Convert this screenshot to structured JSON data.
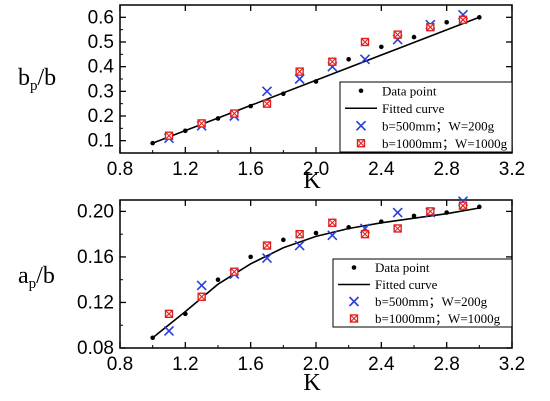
{
  "chart_data": [
    {
      "type": "scatter",
      "xlabel": "K",
      "ylabel": "bp/b",
      "xlim": [
        0.8,
        3.2
      ],
      "ylim": [
        0.05,
        0.65
      ],
      "x_ticks": [
        "0.8",
        "1.2",
        "1.6",
        "2.0",
        "2.4",
        "2.8",
        "3.2"
      ],
      "y_ticks": [
        "0.1",
        "0.2",
        "0.3",
        "0.4",
        "0.5",
        "0.6"
      ],
      "y_tick_values": [
        0.1,
        0.2,
        0.3,
        0.4,
        0.5,
        0.6
      ],
      "legend_position": "bottom-right",
      "series": [
        {
          "name": "Data point",
          "marker": "dot",
          "color": "#000000",
          "x": [
            1.0,
            1.2,
            1.4,
            1.6,
            1.8,
            2.0,
            2.2,
            2.4,
            2.6,
            2.8,
            3.0
          ],
          "y": [
            0.09,
            0.14,
            0.19,
            0.24,
            0.29,
            0.34,
            0.43,
            0.48,
            0.52,
            0.58,
            0.6
          ]
        },
        {
          "name": "Fitted curve",
          "marker": "line",
          "color": "#000000",
          "x": [
            1.0,
            1.5,
            2.0,
            2.5,
            3.0
          ],
          "y": [
            0.09,
            0.217,
            0.345,
            0.473,
            0.6
          ]
        },
        {
          "name": "b=500mm；W=200g",
          "marker": "x",
          "color": "#2b3fd4",
          "x": [
            1.1,
            1.3,
            1.5,
            1.7,
            1.9,
            2.1,
            2.3,
            2.5,
            2.7,
            2.9
          ],
          "y": [
            0.11,
            0.16,
            0.2,
            0.3,
            0.35,
            0.4,
            0.43,
            0.51,
            0.57,
            0.61
          ]
        },
        {
          "name": "b=1000mm；W=1000g",
          "marker": "square",
          "color": "#e02020",
          "x": [
            1.1,
            1.3,
            1.5,
            1.7,
            1.9,
            2.1,
            2.3,
            2.5,
            2.7,
            2.9
          ],
          "y": [
            0.12,
            0.17,
            0.21,
            0.25,
            0.38,
            0.42,
            0.5,
            0.53,
            0.56,
            0.59
          ]
        }
      ]
    },
    {
      "type": "scatter",
      "xlabel": "K",
      "ylabel": "ap/b",
      "xlim": [
        0.8,
        3.2
      ],
      "ylim": [
        0.08,
        0.21
      ],
      "x_ticks": [
        "0.8",
        "1.2",
        "1.6",
        "2.0",
        "2.4",
        "2.8",
        "3.2"
      ],
      "y_ticks": [
        "0.08",
        "0.12",
        "0.16",
        "0.20"
      ],
      "y_tick_values": [
        0.08,
        0.12,
        0.16,
        0.2
      ],
      "legend_position": "bottom-right",
      "series": [
        {
          "name": "Data point",
          "marker": "dot",
          "color": "#000000",
          "x": [
            1.0,
            1.2,
            1.4,
            1.6,
            1.8,
            2.0,
            2.2,
            2.4,
            2.6,
            2.8,
            3.0
          ],
          "y": [
            0.089,
            0.11,
            0.14,
            0.16,
            0.175,
            0.181,
            0.186,
            0.191,
            0.196,
            0.199,
            0.204
          ]
        },
        {
          "name": "Fitted curve",
          "marker": "line",
          "color": "#000000",
          "x": [
            1.0,
            1.2,
            1.4,
            1.6,
            1.8,
            2.0,
            2.2,
            2.4,
            2.6,
            2.8,
            3.0
          ],
          "y": [
            0.089,
            0.112,
            0.136,
            0.154,
            0.168,
            0.178,
            0.185,
            0.19,
            0.194,
            0.198,
            0.203
          ]
        },
        {
          "name": "b=500mm；W=200g",
          "marker": "x",
          "color": "#2b3fd4",
          "x": [
            1.1,
            1.3,
            1.5,
            1.7,
            1.9,
            2.1,
            2.3,
            2.5,
            2.7,
            2.9
          ],
          "y": [
            0.095,
            0.135,
            0.145,
            0.159,
            0.17,
            0.179,
            0.185,
            0.199,
            0.199,
            0.209
          ]
        },
        {
          "name": "b=1000mm；W=1000g",
          "marker": "square",
          "color": "#e02020",
          "x": [
            1.1,
            1.3,
            1.5,
            1.7,
            1.9,
            2.1,
            2.3,
            2.5,
            2.7,
            2.9
          ],
          "y": [
            0.11,
            0.125,
            0.147,
            0.17,
            0.18,
            0.19,
            0.18,
            0.185,
            0.2,
            0.205
          ]
        }
      ]
    }
  ]
}
